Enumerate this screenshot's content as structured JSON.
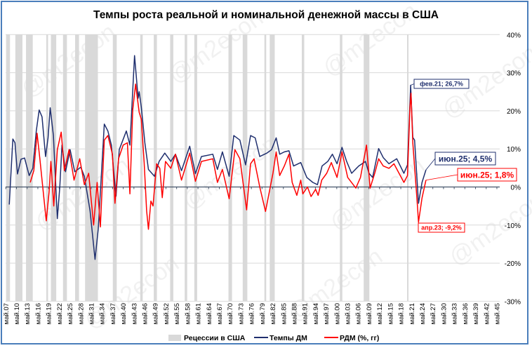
{
  "title": "Темпы роста реальной и номинальной денежной массы в США",
  "watermark": "@m2econ",
  "colors": {
    "nominal": "#1f2f6e",
    "real": "#ff0000",
    "recession": "#d9d9d9",
    "grid": "#d9d9d9",
    "frame": "#4a7ebb"
  },
  "chart_data": {
    "type": "line",
    "title": "Темпы роста реальной и номинальной денежной массы в США",
    "x_range_years": [
      1907.33,
      2045.33
    ],
    "x_tick_labels": [
      "май.07",
      "май.10",
      "май.13",
      "май.16",
      "май.19",
      "май.22",
      "май.25",
      "май.28",
      "май.31",
      "май.34",
      "май.37",
      "май.40",
      "май.43",
      "май.46",
      "май.49",
      "май.52",
      "май.55",
      "май.58",
      "май.61",
      "май.64",
      "май.67",
      "май.70",
      "май.73",
      "май.76",
      "май.79",
      "май.82",
      "май.85",
      "май.88",
      "май.91",
      "май.94",
      "май.97",
      "май.00",
      "май.03",
      "май.06",
      "май.09",
      "май.12",
      "май.15",
      "май.18",
      "май.21",
      "май.24",
      "май.27",
      "май.30",
      "май.33",
      "май.36",
      "май.39",
      "май.42",
      "май.45"
    ],
    "y_axis": {
      "position": "right",
      "min": -30,
      "max": 40,
      "step": 10,
      "tick_labels": [
        "40%",
        "30%",
        "20%",
        "10%",
        "0%",
        "-10%",
        "-20%",
        "-30%"
      ]
    },
    "grid": "horizontal",
    "legend_position": "bottom",
    "recessions": [
      [
        1907.4,
        1908.5
      ],
      [
        1910.0,
        1912.0
      ],
      [
        1913.0,
        1914.9
      ],
      [
        1918.7,
        1919.2
      ],
      [
        1920.0,
        1921.5
      ],
      [
        1923.4,
        1924.5
      ],
      [
        1926.8,
        1927.9
      ],
      [
        1929.6,
        1933.2
      ],
      [
        1937.4,
        1938.5
      ],
      [
        1945.1,
        1945.8
      ],
      [
        1948.9,
        1949.8
      ],
      [
        1953.5,
        1954.4
      ],
      [
        1957.6,
        1958.3
      ],
      [
        1960.3,
        1961.1
      ],
      [
        1969.9,
        1970.9
      ],
      [
        1973.9,
        1975.2
      ],
      [
        1980.0,
        1980.5
      ],
      [
        1981.5,
        1982.9
      ],
      [
        1990.5,
        1991.2
      ],
      [
        2001.2,
        2001.9
      ],
      [
        2007.9,
        2009.5
      ],
      [
        2020.1,
        2020.4
      ]
    ],
    "series": [
      {
        "name": "Темпы ДМ",
        "color": "#1f2f6e",
        "points": [
          [
            1908.3,
            -4.6
          ],
          [
            1909.3,
            12.6
          ],
          [
            1909.9,
            11.6
          ],
          [
            1910.6,
            3.4
          ],
          [
            1911.6,
            7.3
          ],
          [
            1912.6,
            7.6
          ],
          [
            1913.9,
            3.0
          ],
          [
            1914.9,
            4.9
          ],
          [
            1915.9,
            14.7
          ],
          [
            1916.7,
            20.2
          ],
          [
            1917.5,
            18.4
          ],
          [
            1918.5,
            8.0
          ],
          [
            1919.2,
            12.9
          ],
          [
            1919.8,
            20.8
          ],
          [
            1920.7,
            13.5
          ],
          [
            1921.8,
            -8.3
          ],
          [
            1922.5,
            0
          ],
          [
            1923.1,
            11.0
          ],
          [
            1924.1,
            4.0
          ],
          [
            1925.4,
            9.8
          ],
          [
            1926.7,
            4.0
          ],
          [
            1928.4,
            5.2
          ],
          [
            1929.4,
            2.8
          ],
          [
            1931.0,
            -6.2
          ],
          [
            1932.4,
            -19.0
          ],
          [
            1933.3,
            -11.0
          ],
          [
            1935.0,
            16.5
          ],
          [
            1936.0,
            14.7
          ],
          [
            1937.0,
            11.0
          ],
          [
            1938.3,
            -2.4
          ],
          [
            1939.2,
            9.8
          ],
          [
            1941.2,
            14.7
          ],
          [
            1942.2,
            11.0
          ],
          [
            1943.5,
            34.5
          ],
          [
            1944.5,
            23.3
          ],
          [
            1944.8,
            25.0
          ],
          [
            1945.4,
            21.0
          ],
          [
            1946.4,
            11.6
          ],
          [
            1947.4,
            4.6
          ],
          [
            1949.1,
            2.8
          ],
          [
            1950.4,
            6.7
          ],
          [
            1952.0,
            8.9
          ],
          [
            1953.7,
            6.7
          ],
          [
            1955.0,
            8.6
          ],
          [
            1956.7,
            4.3
          ],
          [
            1959.0,
            10.7
          ],
          [
            1960.6,
            3.5
          ],
          [
            1962.3,
            8.0
          ],
          [
            1965.5,
            8.6
          ],
          [
            1966.8,
            4.6
          ],
          [
            1968.2,
            9.2
          ],
          [
            1970.1,
            2.8
          ],
          [
            1971.4,
            13.5
          ],
          [
            1973.1,
            12.3
          ],
          [
            1974.7,
            5.8
          ],
          [
            1976.1,
            13.5
          ],
          [
            1977.4,
            12.9
          ],
          [
            1978.7,
            8.0
          ],
          [
            1980.7,
            8.9
          ],
          [
            1982.0,
            9.8
          ],
          [
            1983.3,
            12.9
          ],
          [
            1984.3,
            8.6
          ],
          [
            1985.6,
            9.2
          ],
          [
            1986.9,
            9.5
          ],
          [
            1988.2,
            5.5
          ],
          [
            1990.2,
            6.4
          ],
          [
            1991.9,
            2.5
          ],
          [
            1993.6,
            1.2
          ],
          [
            1994.9,
            0.6
          ],
          [
            1996.2,
            5.5
          ],
          [
            1997.8,
            6.7
          ],
          [
            1999.1,
            8.6
          ],
          [
            2000.4,
            6.1
          ],
          [
            2001.8,
            10.4
          ],
          [
            2003.1,
            6.7
          ],
          [
            2004.5,
            3.6
          ],
          [
            2006.5,
            5.5
          ],
          [
            2008.4,
            6.7
          ],
          [
            2009.4,
            3.6
          ],
          [
            2010.4,
            2.5
          ],
          [
            2012.1,
            10.1
          ],
          [
            2013.4,
            7.7
          ],
          [
            2015.0,
            6.1
          ],
          [
            2017.2,
            7.4
          ],
          [
            2019.2,
            3.6
          ],
          [
            2020.2,
            5.8
          ],
          [
            2020.9,
            22.0
          ],
          [
            2021.1,
            26.7
          ],
          [
            2021.7,
            13.0
          ],
          [
            2022.2,
            12.3
          ],
          [
            2023.3,
            -4.3
          ],
          [
            2024.3,
            1.2
          ],
          [
            2025.4,
            4.5
          ]
        ]
      },
      {
        "name": "РДМ (%, гг)",
        "color": "#ff0000",
        "points": [
          [
            1914.2,
            1.2
          ],
          [
            1915.2,
            4.3
          ],
          [
            1916.1,
            14.1
          ],
          [
            1916.9,
            7.4
          ],
          [
            1917.9,
            -1.8
          ],
          [
            1918.7,
            -8.9
          ],
          [
            1919.5,
            -1.2
          ],
          [
            1920.0,
            6.7
          ],
          [
            1920.8,
            -5.0
          ],
          [
            1921.8,
            9.8
          ],
          [
            1922.9,
            14.4
          ],
          [
            1923.8,
            4.3
          ],
          [
            1925.1,
            9.8
          ],
          [
            1926.5,
            1.8
          ],
          [
            1928.1,
            7.4
          ],
          [
            1929.4,
            0.6
          ],
          [
            1930.6,
            3.6
          ],
          [
            1932.0,
            -10.0
          ],
          [
            1933.0,
            1.2
          ],
          [
            1933.9,
            -10.5
          ],
          [
            1935.0,
            12.3
          ],
          [
            1936.0,
            13.5
          ],
          [
            1937.3,
            8.6
          ],
          [
            1938.0,
            -4.3
          ],
          [
            1939.0,
            7.4
          ],
          [
            1940.3,
            11.0
          ],
          [
            1941.5,
            11.6
          ],
          [
            1942.2,
            -1.8
          ],
          [
            1943.0,
            20.2
          ],
          [
            1943.8,
            27.0
          ],
          [
            1944.8,
            19.6
          ],
          [
            1945.4,
            17.8
          ],
          [
            1946.2,
            6.4
          ],
          [
            1946.9,
            -6.2
          ],
          [
            1947.4,
            -11.1
          ],
          [
            1948.1,
            -3.7
          ],
          [
            1948.7,
            -5.0
          ],
          [
            1949.7,
            6.1
          ],
          [
            1950.6,
            4.9
          ],
          [
            1951.3,
            -2.8
          ],
          [
            1952.2,
            6.7
          ],
          [
            1953.7,
            4.9
          ],
          [
            1955.0,
            8.6
          ],
          [
            1956.7,
            1.8
          ],
          [
            1959.0,
            8.9
          ],
          [
            1960.6,
            1.5
          ],
          [
            1962.3,
            6.7
          ],
          [
            1965.5,
            7.4
          ],
          [
            1966.8,
            1.2
          ],
          [
            1968.2,
            4.6
          ],
          [
            1970.1,
            -3.1
          ],
          [
            1971.7,
            9.8
          ],
          [
            1973.1,
            7.4
          ],
          [
            1975.0,
            -6.0
          ],
          [
            1976.1,
            6.1
          ],
          [
            1977.1,
            7.4
          ],
          [
            1978.7,
            0
          ],
          [
            1980.3,
            -6.4
          ],
          [
            1981.7,
            0.3
          ],
          [
            1982.4,
            3.6
          ],
          [
            1983.3,
            9.2
          ],
          [
            1984.3,
            3.0
          ],
          [
            1985.6,
            5.5
          ],
          [
            1986.9,
            8.6
          ],
          [
            1987.8,
            1.2
          ],
          [
            1989.1,
            -2.2
          ],
          [
            1990.2,
            1.8
          ],
          [
            1990.8,
            -1.8
          ],
          [
            1992.1,
            0
          ],
          [
            1993.1,
            -2.5
          ],
          [
            1994.4,
            -0.6
          ],
          [
            1995.1,
            -2.2
          ],
          [
            1996.1,
            1.8
          ],
          [
            1997.5,
            3.6
          ],
          [
            1998.8,
            6.4
          ],
          [
            2000.4,
            2.5
          ],
          [
            2001.8,
            9.2
          ],
          [
            2003.4,
            2.5
          ],
          [
            2005.7,
            -0.3
          ],
          [
            2007.0,
            2.5
          ],
          [
            2008.7,
            11.0
          ],
          [
            2009.7,
            -0.3
          ],
          [
            2011.0,
            3.6
          ],
          [
            2012.1,
            7.4
          ],
          [
            2013.4,
            5.5
          ],
          [
            2015.0,
            4.9
          ],
          [
            2016.4,
            6.1
          ],
          [
            2019.2,
            1.2
          ],
          [
            2020.2,
            3.0
          ],
          [
            2020.9,
            20.9
          ],
          [
            2021.2,
            24.6
          ],
          [
            2021.7,
            11.5
          ],
          [
            2022.9,
            -3.4
          ],
          [
            2023.3,
            -9.2
          ],
          [
            2024.3,
            -2.9
          ],
          [
            2025.4,
            1.8
          ]
        ]
      }
    ],
    "annotations": [
      {
        "text": "фев.21; 26,7%",
        "x": 2021.1,
        "y": 26.7,
        "series": "Темпы ДМ"
      },
      {
        "text": "июн.25; 4,5%",
        "x": 2025.4,
        "y": 4.5,
        "series": "Темпы ДМ"
      },
      {
        "text": "июн.25; 1,8%",
        "x": 2025.4,
        "y": 1.8,
        "series": "РДМ (%, гг)"
      },
      {
        "text": "апр.23; -9,2%",
        "x": 2023.3,
        "y": -9.2,
        "series": "РДМ (%, гг)"
      }
    ],
    "legend": [
      "Рецессии в США",
      "Темпы ДМ",
      "РДМ (%, гг)"
    ]
  }
}
